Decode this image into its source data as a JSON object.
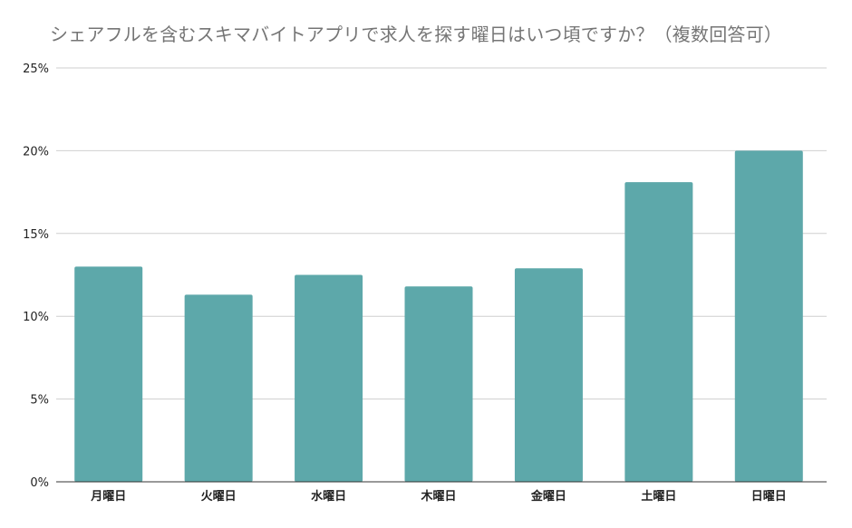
{
  "chart_data": {
    "type": "bar",
    "title": "シェアフルを含むスキマバイトアプリで求人を探す曜日はいつ頃ですか？（複数回答可）",
    "categories": [
      "月曜日",
      "火曜日",
      "水曜日",
      "木曜日",
      "金曜日",
      "土曜日",
      "日曜日"
    ],
    "values": [
      13.0,
      11.3,
      12.5,
      11.8,
      12.9,
      18.1,
      20.0
    ],
    "value_format": "percent",
    "xlabel": "",
    "ylabel": "",
    "ylim": [
      0,
      25
    ],
    "yticks": [
      "0%",
      "5%",
      "10%",
      "15%",
      "20%",
      "25%"
    ],
    "grid": true,
    "legend": "none",
    "bar_color": "#5da8aa"
  }
}
